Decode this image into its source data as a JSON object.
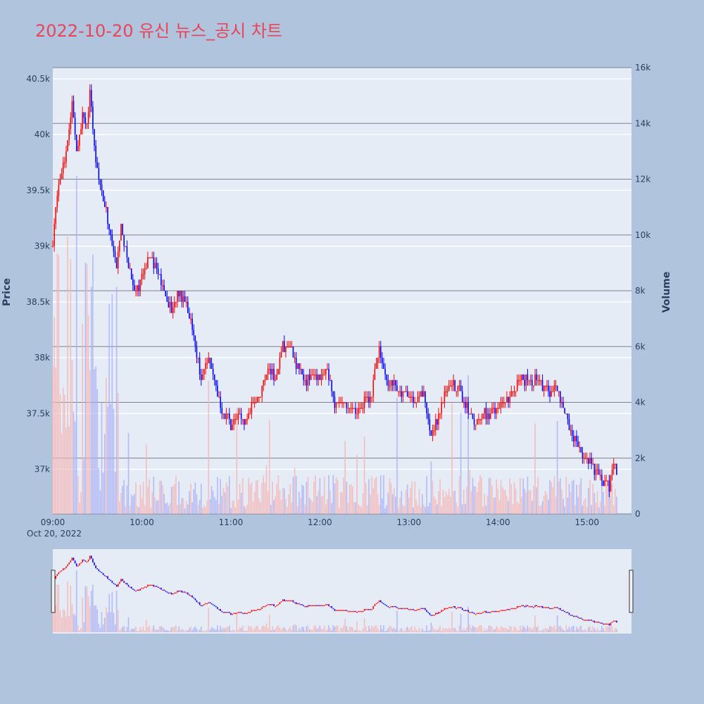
{
  "title": "2022-10-20 유신 뉴스_공시 차트",
  "colors": {
    "background": "#b0c4de",
    "plot_bg": "#e5ecf6",
    "up": "#ff0000",
    "down": "#0000ff",
    "up_volume": "#f4b6b6",
    "down_volume": "#aab1f5",
    "title": "#e8455a"
  },
  "chart_data": {
    "type": "candlestick",
    "title": "2022-10-20 유신 뉴스_공시 차트",
    "xlabel": "",
    "date_label": "Oct 20, 2022",
    "y_left_label": "Price",
    "y_right_label": "Volume",
    "x_range": [
      "09:00",
      "15:30"
    ],
    "y_price_range": [
      36600,
      40600
    ],
    "y_volume_range": [
      0,
      16000
    ],
    "x_ticks": [
      "09:00",
      "10:00",
      "11:00",
      "12:00",
      "13:00",
      "14:00",
      "15:00"
    ],
    "y_price_ticks": [
      "37k",
      "37.5k",
      "38k",
      "38.5k",
      "39k",
      "39.5k",
      "40k",
      "40.5k"
    ],
    "y_volume_ticks": [
      "0",
      "2k",
      "4k",
      "6k",
      "8k",
      "10k",
      "12k",
      "14k",
      "16k"
    ],
    "price_ticks_values": [
      37000,
      37500,
      38000,
      38500,
      39000,
      39500,
      40000,
      40500
    ],
    "volume_ticks_values": [
      0,
      2000,
      4000,
      6000,
      8000,
      10000,
      12000,
      14000,
      16000
    ],
    "close_path": [
      [
        "09:00",
        39000
      ],
      [
        "09:03",
        39500
      ],
      [
        "09:06",
        39700
      ],
      [
        "09:08",
        39800
      ],
      [
        "09:11",
        40000
      ],
      [
        "09:13",
        40300
      ],
      [
        "09:16",
        39900
      ],
      [
        "09:18",
        40000
      ],
      [
        "09:20",
        40200
      ],
      [
        "09:23",
        40100
      ],
      [
        "09:25",
        40350
      ],
      [
        "09:28",
        39900
      ],
      [
        "09:30",
        39700
      ],
      [
        "09:33",
        39500
      ],
      [
        "09:36",
        39300
      ],
      [
        "09:40",
        39000
      ],
      [
        "09:43",
        38800
      ],
      [
        "09:46",
        39200
      ],
      [
        "09:50",
        38900
      ],
      [
        "09:55",
        38600
      ],
      [
        "10:00",
        38700
      ],
      [
        "10:05",
        38950
      ],
      [
        "10:10",
        38800
      ],
      [
        "10:15",
        38600
      ],
      [
        "10:20",
        38400
      ],
      [
        "10:25",
        38600
      ],
      [
        "10:30",
        38500
      ],
      [
        "10:35",
        38200
      ],
      [
        "10:40",
        37800
      ],
      [
        "10:45",
        38000
      ],
      [
        "10:50",
        37700
      ],
      [
        "10:55",
        37500
      ],
      [
        "11:00",
        37400
      ],
      [
        "11:05",
        37500
      ],
      [
        "11:10",
        37400
      ],
      [
        "11:15",
        37600
      ],
      [
        "11:20",
        37700
      ],
      [
        "11:25",
        37900
      ],
      [
        "11:30",
        37800
      ],
      [
        "11:35",
        38100
      ],
      [
        "11:40",
        38100
      ],
      [
        "11:45",
        37900
      ],
      [
        "11:50",
        37800
      ],
      [
        "11:55",
        37850
      ],
      [
        "12:00",
        37850
      ],
      [
        "12:05",
        37900
      ],
      [
        "12:10",
        37600
      ],
      [
        "12:15",
        37600
      ],
      [
        "12:20",
        37550
      ],
      [
        "12:25",
        37500
      ],
      [
        "12:30",
        37600
      ],
      [
        "12:35",
        37700
      ],
      [
        "12:40",
        38100
      ],
      [
        "12:45",
        37800
      ],
      [
        "12:50",
        37750
      ],
      [
        "12:55",
        37700
      ],
      [
        "13:00",
        37650
      ],
      [
        "13:05",
        37600
      ],
      [
        "13:10",
        37700
      ],
      [
        "13:15",
        37300
      ],
      [
        "13:20",
        37500
      ],
      [
        "13:25",
        37700
      ],
      [
        "13:30",
        37750
      ],
      [
        "13:35",
        37700
      ],
      [
        "13:40",
        37500
      ],
      [
        "13:45",
        37400
      ],
      [
        "13:50",
        37500
      ],
      [
        "13:55",
        37500
      ],
      [
        "14:00",
        37550
      ],
      [
        "14:05",
        37600
      ],
      [
        "14:10",
        37700
      ],
      [
        "14:15",
        37800
      ],
      [
        "14:20",
        37800
      ],
      [
        "14:25",
        37800
      ],
      [
        "14:30",
        37750
      ],
      [
        "14:35",
        37700
      ],
      [
        "14:40",
        37700
      ],
      [
        "14:45",
        37500
      ],
      [
        "14:50",
        37300
      ],
      [
        "14:55",
        37200
      ],
      [
        "15:00",
        37100
      ],
      [
        "15:05",
        37000
      ],
      [
        "15:10",
        36900
      ],
      [
        "15:15",
        36850
      ],
      [
        "15:18",
        37050
      ],
      [
        "15:20",
        37000
      ]
    ]
  }
}
